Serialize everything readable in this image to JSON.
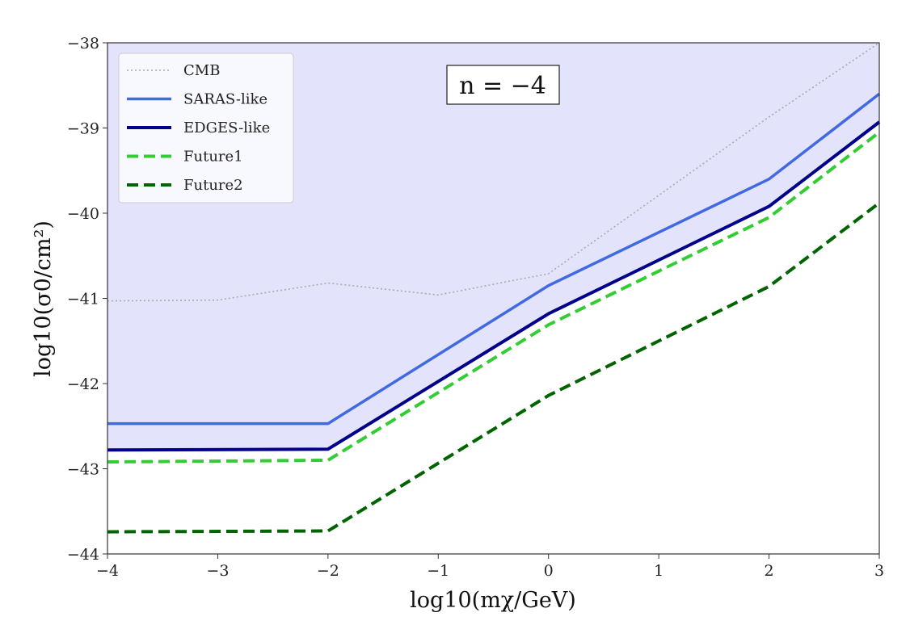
{
  "chart_data": {
    "type": "line",
    "annotation": "n = −4",
    "xlabel": "log10(mχ/GeV)",
    "ylabel": "log10(σ0/cm²)",
    "xlim": [
      -4,
      3
    ],
    "ylim": [
      -44,
      -38
    ],
    "xticks": [
      "−4",
      "−3",
      "−2",
      "−1",
      "0",
      "1",
      "2",
      "3"
    ],
    "yticks": [
      "−44",
      "−43",
      "−42",
      "−41",
      "−40",
      "−39",
      "−38"
    ],
    "grid": false,
    "legend_position": "top-left",
    "shaded_region": {
      "description_color": "#e3e3fb",
      "bounded_below_by": "EDGES-like"
    },
    "series": [
      {
        "name": "CMB",
        "style": "dotted",
        "color": "#aaaaaa",
        "x": [
          -4,
          -3,
          -2,
          -1,
          0,
          2,
          3
        ],
        "y": [
          -41.03,
          -41.02,
          -40.82,
          -40.96,
          -40.71,
          -38.87,
          -38.0
        ]
      },
      {
        "name": "SARAS-like",
        "style": "solid",
        "color": "#4169e1",
        "x": [
          -4,
          -2,
          0,
          2,
          3
        ],
        "y": [
          -42.47,
          -42.47,
          -40.85,
          -39.6,
          -38.6
        ]
      },
      {
        "name": "EDGES-like",
        "style": "solid",
        "color": "#00008b",
        "x": [
          -4,
          -2,
          0,
          2,
          3
        ],
        "y": [
          -42.78,
          -42.77,
          -41.18,
          -39.92,
          -38.93
        ]
      },
      {
        "name": "Future1",
        "style": "dashed",
        "color": "#32cd32",
        "x": [
          -4,
          -2,
          0,
          2,
          3
        ],
        "y": [
          -42.92,
          -42.9,
          -41.31,
          -40.05,
          -39.05
        ]
      },
      {
        "name": "Future2",
        "style": "dashed",
        "color": "#006400",
        "x": [
          -4,
          -2,
          0,
          2,
          3
        ],
        "y": [
          -43.74,
          -43.73,
          -42.14,
          -40.86,
          -39.88
        ]
      }
    ]
  }
}
